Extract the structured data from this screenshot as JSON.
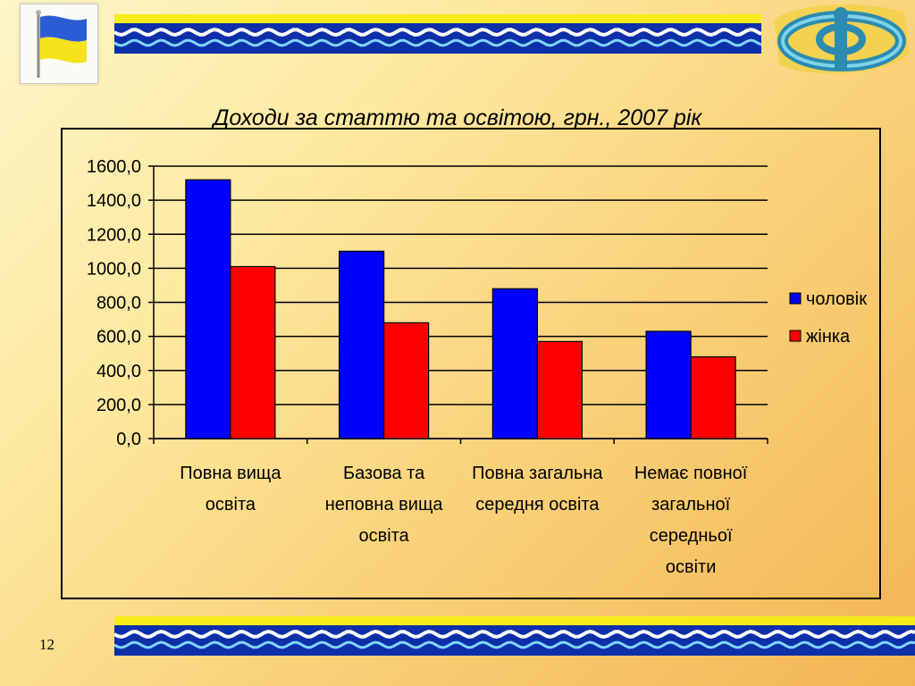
{
  "slide": {
    "page_number": "12"
  },
  "chart_data": {
    "type": "bar",
    "title": "Доходи за статтю та освітою, грн., 2007 рік",
    "categories": [
      [
        "Повна вища",
        "освіта"
      ],
      [
        "Базова та",
        "неповна вища",
        "освіта"
      ],
      [
        "Повна загальна",
        "середня освіта"
      ],
      [
        "Немає повної",
        "загальної",
        "середньої",
        "освіти"
      ]
    ],
    "series": [
      {
        "name": "чоловік",
        "color": "#0000ff",
        "values": [
          1520,
          1100,
          880,
          630
        ]
      },
      {
        "name": "жінка",
        "color": "#ff0000",
        "values": [
          1010,
          680,
          570,
          480
        ]
      }
    ],
    "ylim": [
      0,
      1600
    ],
    "yticks": [
      "0,0",
      "200,0",
      "400,0",
      "600,0",
      "800,0",
      "1000,0",
      "1200,0",
      "1400,0",
      "1600,0"
    ],
    "ytick_values": [
      0,
      200,
      400,
      600,
      800,
      1000,
      1200,
      1400,
      1600
    ],
    "grid": true,
    "legend_position": "right"
  }
}
